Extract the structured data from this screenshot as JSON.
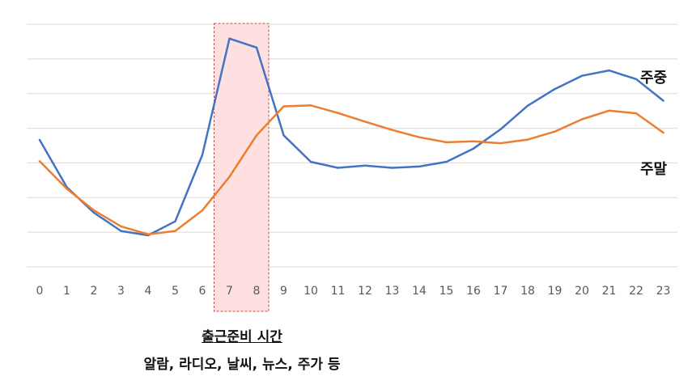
{
  "chart_data": {
    "type": "line",
    "x": [
      0,
      1,
      2,
      3,
      4,
      5,
      6,
      7,
      8,
      9,
      10,
      11,
      12,
      13,
      14,
      15,
      16,
      17,
      18,
      19,
      20,
      21,
      22,
      23
    ],
    "categories": [
      "0",
      "1",
      "2",
      "3",
      "4",
      "5",
      "6",
      "7",
      "8",
      "9",
      "10",
      "11",
      "12",
      "13",
      "14",
      "15",
      "16",
      "17",
      "18",
      "19",
      "20",
      "21",
      "22",
      "23"
    ],
    "series": [
      {
        "name": "주중",
        "color": "#4472C4",
        "values": [
          3.52,
          2.1,
          1.33,
          0.78,
          0.65,
          1.07,
          3.07,
          6.57,
          6.3,
          3.66,
          2.86,
          2.68,
          2.75,
          2.68,
          2.72,
          2.86,
          3.26,
          3.84,
          4.55,
          5.05,
          5.45,
          5.61,
          5.35,
          4.7
        ]
      },
      {
        "name": "주말",
        "color": "#ED7D31",
        "values": [
          2.88,
          2.05,
          1.4,
          0.92,
          0.68,
          0.78,
          1.4,
          2.41,
          3.66,
          4.53,
          4.56,
          4.33,
          4.07,
          3.82,
          3.6,
          3.45,
          3.48,
          3.42,
          3.53,
          3.77,
          4.14,
          4.4,
          4.32,
          3.74
        ]
      }
    ],
    "ylim": [
      -0.3,
      7.0
    ],
    "grid": true,
    "highlight": {
      "x_start": 7,
      "x_end": 8,
      "color": "#FFE0E0",
      "border": "#C0504D"
    },
    "annotation": {
      "title": "출근준비 시간",
      "subtitle": "알람, 라디오, 날씨, 뉴스, 주가 등"
    },
    "title": "",
    "xlabel": "",
    "ylabel": ""
  }
}
